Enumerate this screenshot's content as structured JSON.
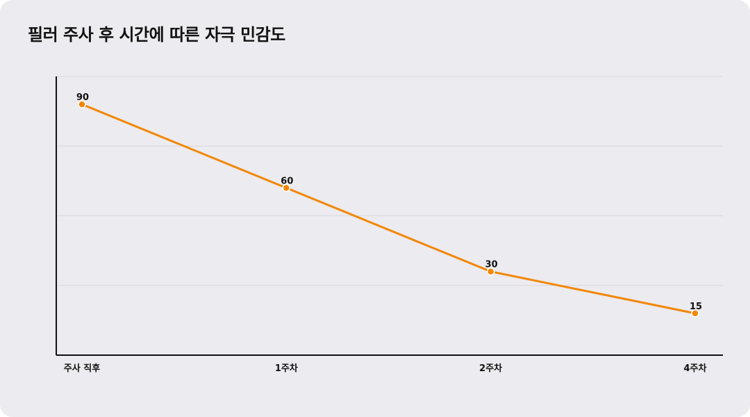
{
  "title": "필러 주사 후 시간에 따른 자극 민감도",
  "colors": {
    "background": "#ecebef",
    "line": "#f28705",
    "grid": "#d9d8dc",
    "axis": "#111111"
  },
  "chart_data": {
    "type": "line",
    "title": "필러 주사 후 시간에 따른 자극 민감도",
    "categories": [
      "주사 직후",
      "1주차",
      "2주차",
      "4주차"
    ],
    "values": [
      90,
      60,
      30,
      15
    ],
    "data_labels": [
      "90",
      "60",
      "30",
      "15"
    ],
    "ylim": [
      0,
      100
    ],
    "grid": true,
    "legend": "none",
    "xlabel": "",
    "ylabel": ""
  }
}
